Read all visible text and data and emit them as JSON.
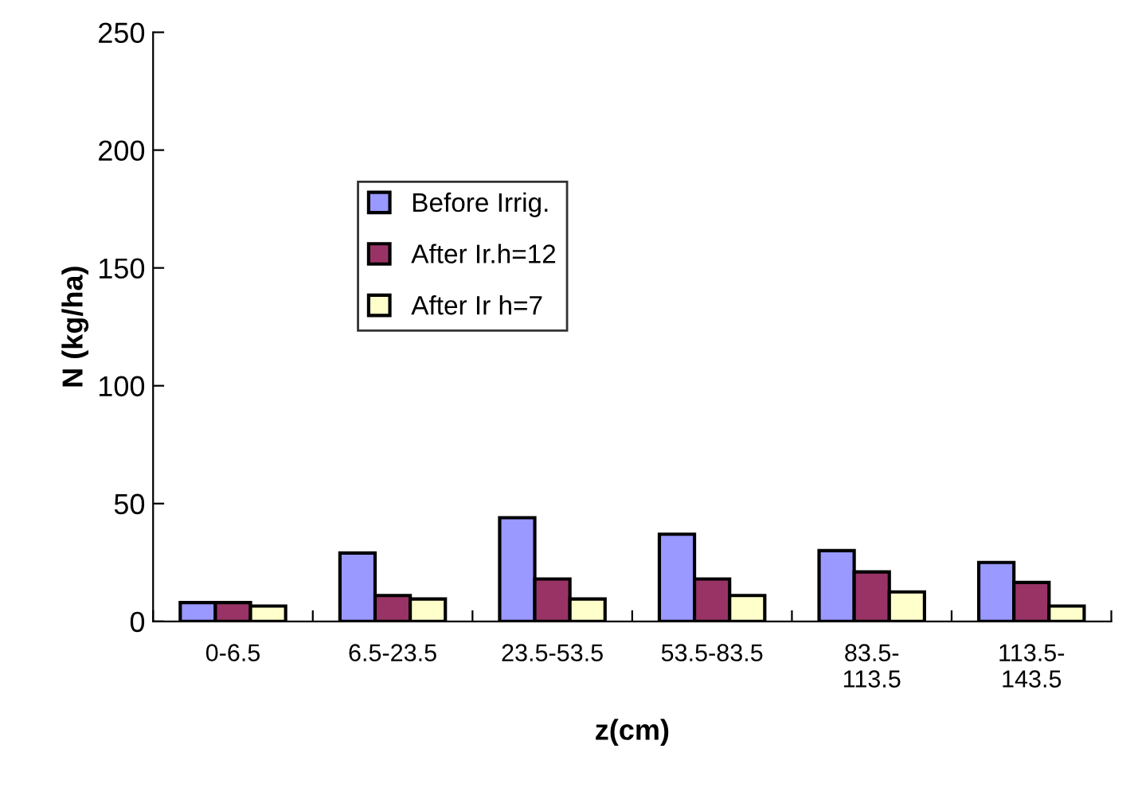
{
  "chart_data": {
    "type": "bar",
    "xlabel": "z(cm)",
    "ylabel": "N (kg/ha)",
    "categories": [
      "0-6.5",
      "6.5-23.5",
      "23.5-53.5",
      "53.5-83.5",
      "83.5-\n113.5",
      "113.5-\n143.5"
    ],
    "series": [
      {
        "name": "Before Irrig.",
        "color": "#9999ff",
        "values": [
          8,
          29,
          44,
          37,
          30,
          25
        ]
      },
      {
        "name": "After Ir.h=12",
        "color": "#993366",
        "values": [
          8,
          11,
          18,
          18,
          21,
          16.5
        ]
      },
      {
        "name": "After Ir h=7",
        "color": "#ffffcc",
        "values": [
          6.5,
          9.5,
          9.5,
          11,
          12.5,
          6.5
        ]
      }
    ],
    "ylim": [
      0,
      250
    ],
    "yticks": [
      0,
      50,
      100,
      150,
      200,
      250
    ],
    "grid": false,
    "legend": "left"
  }
}
